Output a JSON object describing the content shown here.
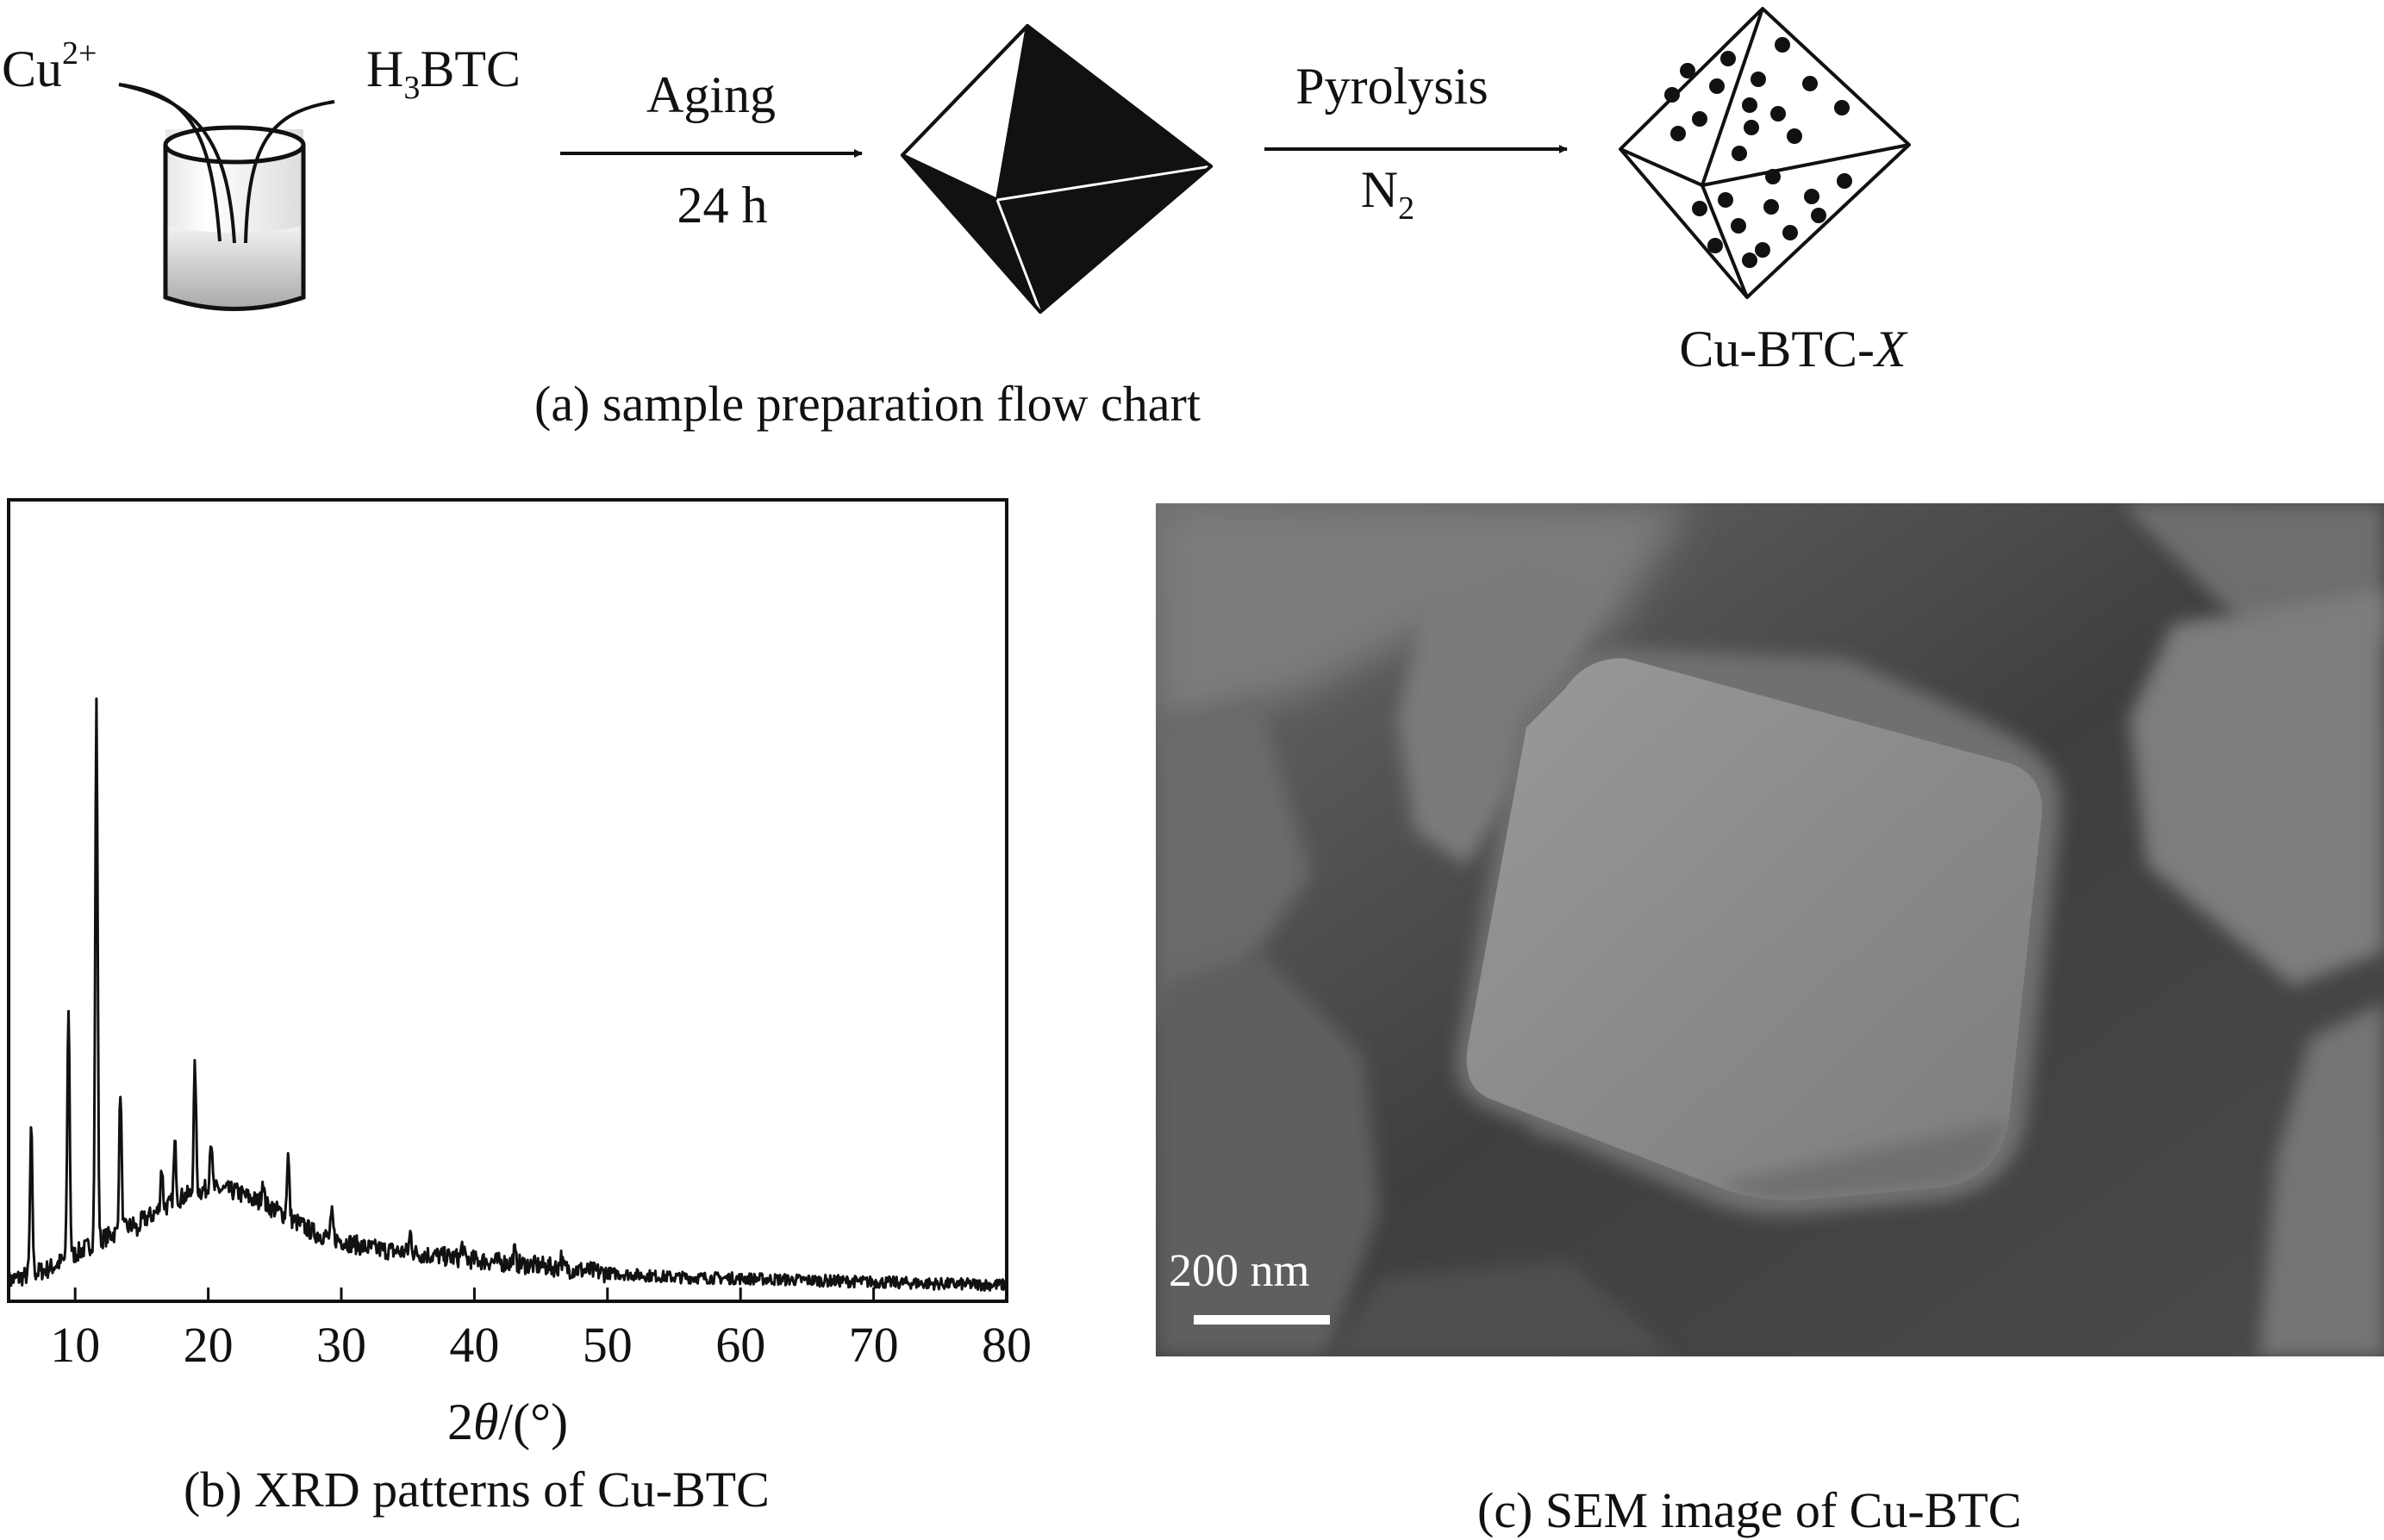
{
  "flow_chart": {
    "reactant_1": "Cu",
    "reactant_1_sup": "2+",
    "reactant_2_prefix": "H",
    "reactant_2_sub": "3",
    "reactant_2_suffix": "BTC",
    "step_1_top": "Aging",
    "step_1_bottom": "24 h",
    "step_2_top": "Pyrolysis",
    "step_2_bottom_main": "N",
    "step_2_bottom_sub": "2",
    "product_prefix": "Cu-BTC-",
    "product_italic": "X",
    "caption": "(a) sample preparation flow chart"
  },
  "chart_data": {
    "type": "line",
    "title": "",
    "xlabel_num": "2",
    "xlabel_theta": "θ",
    "xlabel_unit": "/(°)",
    "ylabel": "",
    "xlim": [
      5,
      80
    ],
    "ylim": [
      0,
      100
    ],
    "xticks": [
      10,
      20,
      30,
      40,
      50,
      60,
      70,
      80
    ],
    "grid": false,
    "baseline": [
      [
        5,
        3
      ],
      [
        8,
        5
      ],
      [
        12,
        10
      ],
      [
        15,
        13
      ],
      [
        18,
        17
      ],
      [
        20,
        18.5
      ],
      [
        22,
        18
      ],
      [
        25,
        15
      ],
      [
        28,
        11
      ],
      [
        32,
        8.5
      ],
      [
        36,
        7.5
      ],
      [
        40,
        6.5
      ],
      [
        45,
        5.5
      ],
      [
        50,
        4.3
      ],
      [
        55,
        3.6
      ],
      [
        60,
        3.4
      ],
      [
        65,
        3.1
      ],
      [
        70,
        2.8
      ],
      [
        75,
        2.5
      ],
      [
        80,
        2.3
      ]
    ],
    "peaks": [
      [
        6.7,
        28
      ],
      [
        9.5,
        49
      ],
      [
        11.6,
        100
      ],
      [
        13.4,
        35
      ],
      [
        14.7,
        11
      ],
      [
        16.5,
        22
      ],
      [
        17.5,
        26
      ],
      [
        19.0,
        39
      ],
      [
        20.2,
        27
      ],
      [
        24.1,
        20
      ],
      [
        26.0,
        24
      ],
      [
        29.3,
        14
      ],
      [
        35.2,
        11
      ],
      [
        39.1,
        9
      ],
      [
        43.0,
        8
      ],
      [
        46.5,
        7
      ]
    ],
    "caption": "(b) XRD patterns of Cu-BTC"
  },
  "sem_image": {
    "scale_bar_label": "200 nm",
    "caption": "(c) SEM image of Cu-BTC"
  }
}
